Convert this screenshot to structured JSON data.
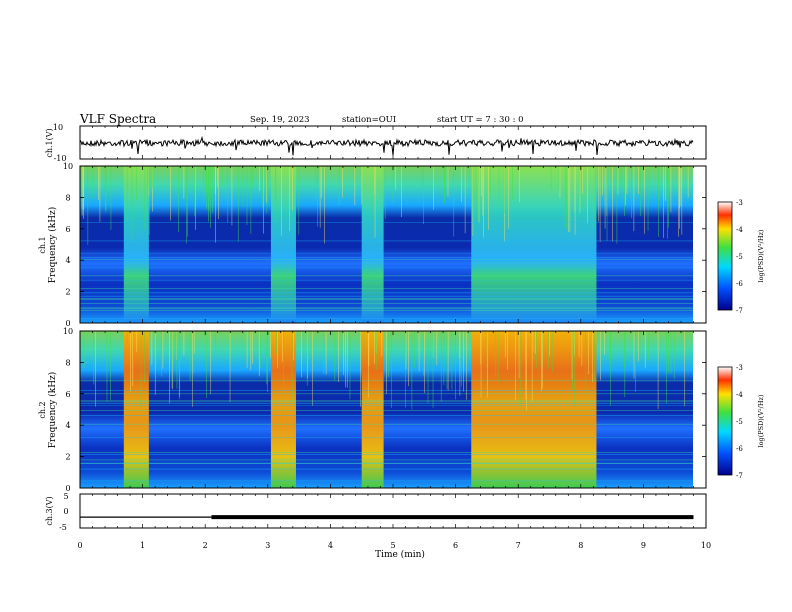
{
  "header": {
    "title": "VLF Spectra",
    "date": "Sep. 19, 2023",
    "station": "station=OUI",
    "start_ut": "start UT =  7 : 30 : 0"
  },
  "chart_data": [
    {
      "type": "line",
      "panel": "ch1-waveform",
      "ylabel": "ch.1(V)",
      "ylim": [
        -10,
        10
      ],
      "yticks": [
        "10",
        "-10"
      ],
      "xlim": [
        0,
        10
      ],
      "trace": "noisy waveform near 0 V with sparse negative spikes to about -10 V",
      "series": [
        {
          "values": [
            0
          ]
        }
      ]
    },
    {
      "type": "heatmap",
      "panel": "ch1-spectrogram",
      "ylabel": "ch.1\nFrequency (kHz)",
      "ylim": [
        0,
        10
      ],
      "yticks": [
        "0",
        "2",
        "4",
        "6",
        "8",
        "10"
      ],
      "xlim": [
        0,
        10
      ],
      "colorbar": {
        "label": "log(PSD)(V²/Hz)",
        "range": [
          -7,
          -3
        ],
        "ticks": [
          "-3",
          "-4",
          "-5",
          "-6",
          "-7"
        ]
      },
      "bursts_min": [
        [
          0.7,
          1.1
        ],
        [
          3.05,
          3.45
        ],
        [
          4.5,
          4.85
        ],
        [
          6.25,
          8.25
        ]
      ]
    },
    {
      "type": "heatmap",
      "panel": "ch2-spectrogram",
      "ylabel": "ch.2\nFrequency (kHz)",
      "ylim": [
        0,
        10
      ],
      "yticks": [
        "0",
        "2",
        "4",
        "6",
        "8",
        "10"
      ],
      "xlim": [
        0,
        10
      ],
      "colorbar": {
        "label": "log(PSD)(V²/Hz)",
        "range": [
          -7,
          -3
        ],
        "ticks": [
          "-3",
          "-4",
          "-5",
          "-6",
          "-7"
        ]
      },
      "bursts_min": [
        [
          0.7,
          1.1
        ],
        [
          3.05,
          3.45
        ],
        [
          4.5,
          4.85
        ],
        [
          6.25,
          8.25
        ]
      ]
    },
    {
      "type": "line",
      "panel": "ch3-level",
      "ylabel": "ch.3(V)",
      "ylim": [
        -5,
        5
      ],
      "yticks": [
        "5",
        "0",
        "-5"
      ],
      "xlim": [
        0,
        10
      ],
      "xlabel": "Time (min)",
      "xticks": [
        "0",
        "1",
        "2",
        "3",
        "4",
        "5",
        "6",
        "7",
        "8",
        "9",
        "10"
      ],
      "x": [
        0,
        2.1,
        2.1,
        9.8
      ],
      "series": [
        {
          "values": [
            -1.8,
            -1.8,
            -1.8,
            -1.8
          ]
        }
      ]
    }
  ]
}
